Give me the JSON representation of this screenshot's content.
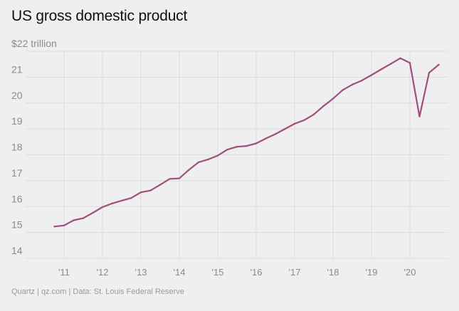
{
  "chart_data": {
    "type": "line",
    "title": "US gross domestic product",
    "ylabel": "",
    "xlabel": "",
    "y_top_label": "$22 trillion",
    "ylim": [
      14,
      22
    ],
    "y_ticks": [
      14,
      15,
      16,
      17,
      18,
      19,
      20,
      21,
      22
    ],
    "y_tick_labels": [
      "14",
      "15",
      "16",
      "17",
      "18",
      "19",
      "20",
      "21",
      "$22 trillion"
    ],
    "xlim": [
      2010.75,
      2020.88
    ],
    "x_ticks": [
      2011,
      2012,
      2013,
      2014,
      2015,
      2016,
      2017,
      2018,
      2019,
      2020
    ],
    "x_tick_labels": [
      "'11",
      "'12",
      "'13",
      "'14",
      "'15",
      "'16",
      "'17",
      "'18",
      "'19",
      "'20"
    ],
    "grid": true,
    "line_color": "#9e4f7d",
    "series": [
      {
        "x": [
          2010.75,
          2011.0,
          2011.25,
          2011.5,
          2011.75,
          2012.0,
          2012.25,
          2012.5,
          2012.75,
          2013.0,
          2013.25,
          2013.5,
          2013.75,
          2014.0,
          2014.25,
          2014.5,
          2014.75,
          2015.0,
          2015.25,
          2015.5,
          2015.75,
          2016.0,
          2016.25,
          2016.5,
          2016.75,
          2017.0,
          2017.25,
          2017.5,
          2017.75,
          2018.0,
          2018.25,
          2018.5,
          2018.75,
          2019.0,
          2019.25,
          2019.5,
          2019.75,
          2020.0,
          2020.25,
          2020.5,
          2020.75
        ],
        "values": [
          15.23,
          15.27,
          15.47,
          15.55,
          15.76,
          15.98,
          16.12,
          16.23,
          16.33,
          16.55,
          16.62,
          16.84,
          17.07,
          17.09,
          17.42,
          17.71,
          17.82,
          17.97,
          18.2,
          18.31,
          18.34,
          18.44,
          18.63,
          18.8,
          19.0,
          19.2,
          19.34,
          19.56,
          19.88,
          20.17,
          20.5,
          20.71,
          20.87,
          21.08,
          21.3,
          21.51,
          21.73,
          21.55,
          19.48,
          21.17,
          21.48
        ]
      }
    ]
  },
  "footer": "Quartz | qz.com | Data: St. Louis Federal Reserve"
}
